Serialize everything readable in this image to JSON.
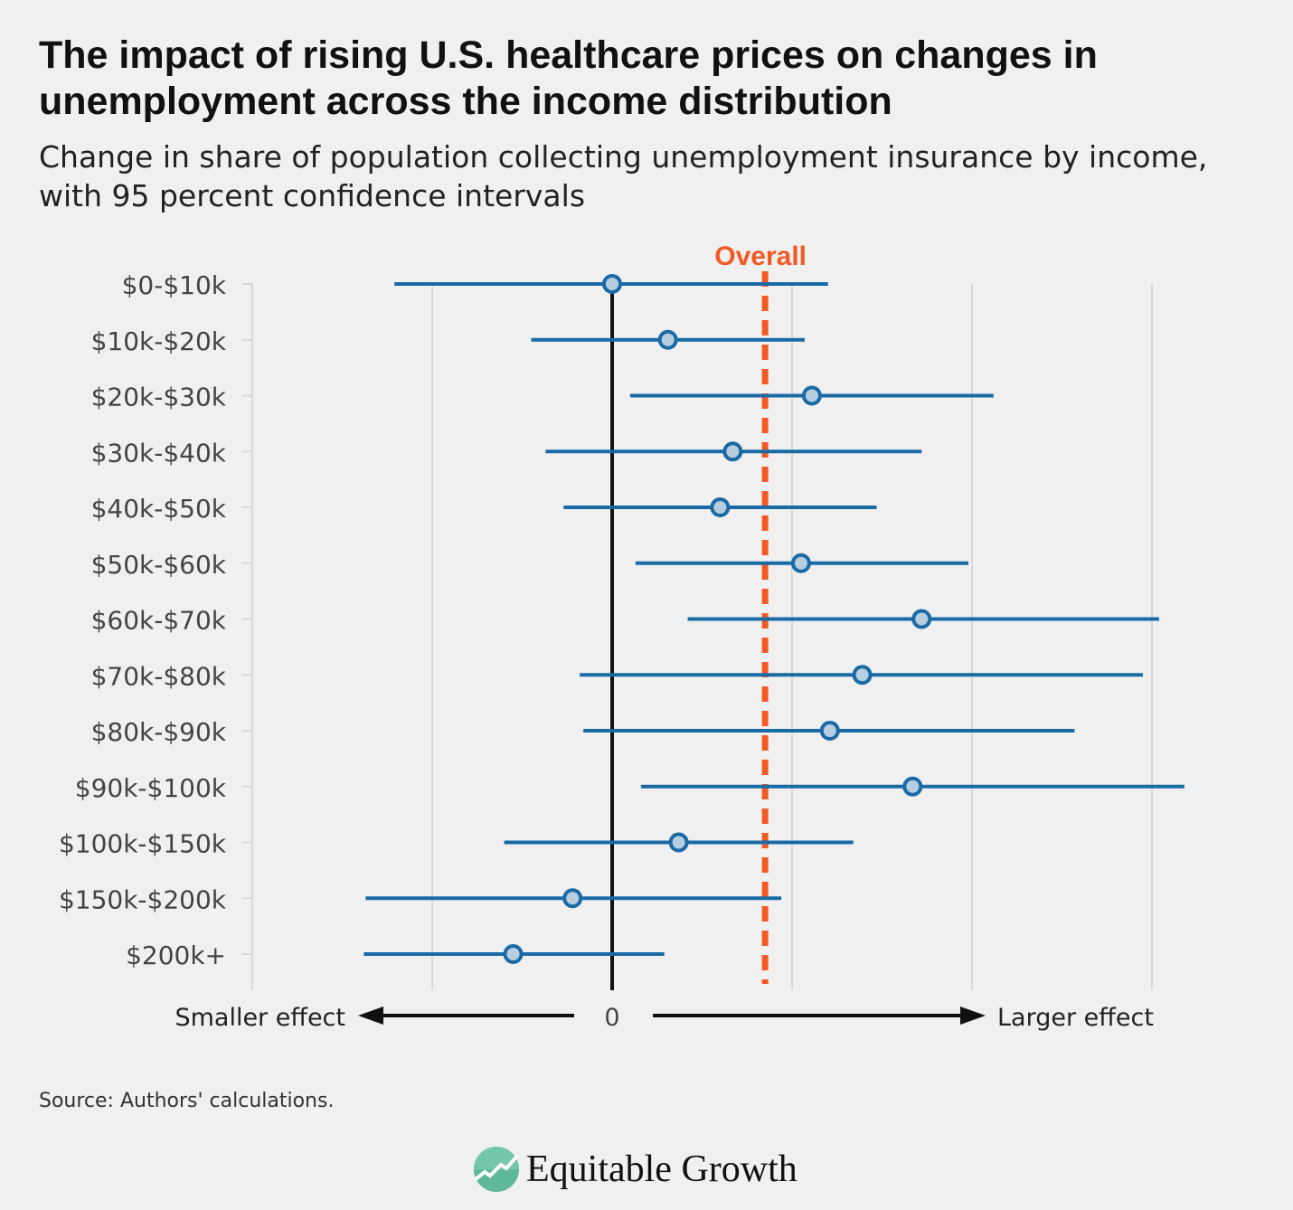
{
  "title": "The impact of rising U.S. healthcare prices on changes in unemployment across the income distribution",
  "subtitle": "Change in share of population collecting unemployment insurance by income, with 95 percent confidence intervals",
  "source": "Source: Authors' calculations.",
  "brand": "Equitable Growth",
  "colors": {
    "point": "#1a6aa6",
    "fill": "#b7cde0",
    "overall": "#f15a24",
    "zero": "#111111",
    "grid": "#d8d8d8",
    "background": "#f0f0f0",
    "logo": "#5fb89a"
  },
  "chart_data": {
    "type": "dot-and-interval",
    "categories": [
      "$0-$10k",
      "$10k-$20k",
      "$20k-$30k",
      "$30k-$40k",
      "$40k-$50k",
      "$50k-$60k",
      "$60k-$70k",
      "$70k-$80k",
      "$80k-$90k",
      "$90k-$100k",
      "$100k-$150k",
      "$150k-$200k",
      "$200k+"
    ],
    "estimate": [
      0,
      0.31,
      1.11,
      0.67,
      0.6,
      1.05,
      1.72,
      1.39,
      1.21,
      1.67,
      0.37,
      -0.22,
      -0.55
    ],
    "ci_low": [
      -1.21,
      -0.45,
      0.1,
      -0.37,
      -0.27,
      0.13,
      0.42,
      -0.18,
      -0.16,
      0.16,
      -0.6,
      -1.37,
      -1.38
    ],
    "ci_high": [
      1.2,
      1.07,
      2.12,
      1.72,
      1.47,
      1.98,
      3.04,
      2.95,
      2.57,
      3.18,
      1.34,
      0.94,
      0.29
    ],
    "overall": {
      "label": "Overall",
      "value": 0.85
    },
    "xlim": [
      -2,
      3
    ],
    "grid_x": [
      -2,
      -1,
      0,
      1,
      2,
      3
    ],
    "x_tick_labels": [
      "0"
    ],
    "x_left_label": "Smaller effect",
    "x_right_label": "Larger effect",
    "grid": true
  }
}
